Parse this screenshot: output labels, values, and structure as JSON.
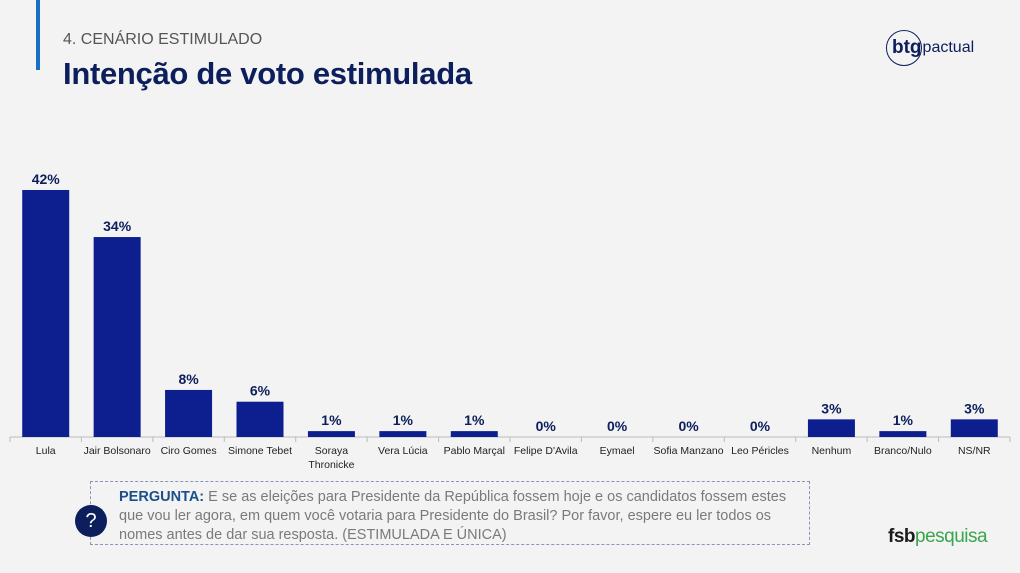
{
  "header": {
    "section": "4. CENÁRIO ESTIMULADO",
    "title": "Intenção de voto estimulada"
  },
  "logo": {
    "btg": "btg",
    "pactual": "pactual"
  },
  "chart_data": {
    "type": "bar",
    "title": "Intenção de voto estimulada",
    "categories": [
      "Lula",
      "Jair Bolsonaro",
      "Ciro Gomes",
      "Simone Tebet",
      "Soraya Thronicke",
      "Vera Lúcia",
      "Pablo Marçal",
      "Felipe D'Avila",
      "Eymael",
      "Sofia Manzano",
      "Leo Péricles",
      "Nenhum",
      "Branco/Nulo",
      "NS/NR"
    ],
    "category_lines": [
      [
        "Lula"
      ],
      [
        "Jair Bolsonaro"
      ],
      [
        "Ciro Gomes"
      ],
      [
        "Simone Tebet"
      ],
      [
        "Soraya",
        "Thronicke"
      ],
      [
        "Vera Lúcia"
      ],
      [
        "Pablo Marçal"
      ],
      [
        "Felipe D'Avila"
      ],
      [
        "Eymael"
      ],
      [
        "Sofia Manzano"
      ],
      [
        "Leo Péricles"
      ],
      [
        "Nenhum"
      ],
      [
        "Branco/Nulo"
      ],
      [
        "NS/NR"
      ]
    ],
    "values": [
      42,
      34,
      8,
      6,
      1,
      1,
      1,
      0,
      0,
      0,
      0,
      3,
      1,
      3
    ],
    "labels": [
      "42%",
      "34%",
      "8%",
      "6%",
      "1%",
      "1%",
      "1%",
      "0%",
      "0%",
      "0%",
      "0%",
      "3%",
      "1%",
      "3%"
    ],
    "unit": "%",
    "ylim": [
      0,
      45
    ],
    "grid": false,
    "bar_color": "#0d1f8f"
  },
  "question": {
    "label": "PERGUNTA:",
    "text": " E se as eleições para Presidente da República fossem hoje e os candidatos fossem estes que vou ler agora, em quem você votaria para Presidente do Brasil? Por favor, espere eu ler todos os nomes antes de dar sua resposta. (ESTIMULADA E ÚNICA)",
    "icon": "?"
  },
  "footer_logo": {
    "a": "fsb",
    "b": "pesquisa"
  }
}
